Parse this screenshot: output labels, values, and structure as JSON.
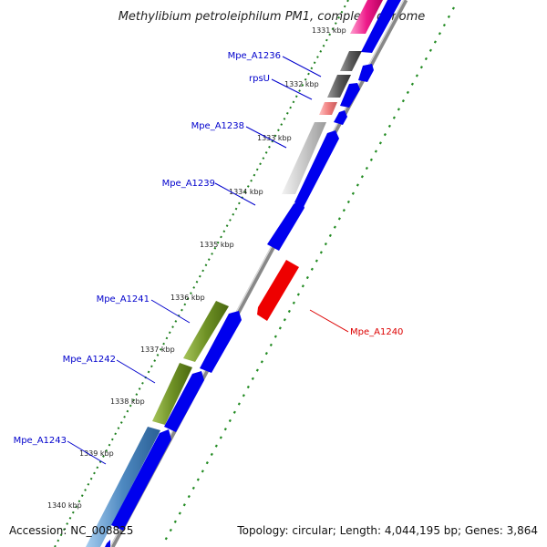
{
  "title": "Methylibium petroleiphilum PM1, complete genome",
  "accession_text": "Accession: NC_008825",
  "summary_text": "Topology: circular; Length: 4,044,195 bp; Genes: 3,864",
  "colors": {
    "cds_forward": "#0000ee",
    "cds_reverse": "#ee0000",
    "label": "#0000cc",
    "label_reverse": "#dd0000",
    "gc_skew": "#228b22",
    "backbone": "#888888"
  },
  "ticks": [
    {
      "label": "1331 kbp"
    },
    {
      "label": "1332 kbp"
    },
    {
      "label": "1333 kbp"
    },
    {
      "label": "1334 kbp"
    },
    {
      "label": "1335 kbp"
    },
    {
      "label": "1336 kbp"
    },
    {
      "label": "1337 kbp"
    },
    {
      "label": "1338 kbp"
    },
    {
      "label": "1339 kbp"
    },
    {
      "label": "1340 kbp"
    }
  ],
  "gene_labels": [
    {
      "name": "Mpe_A1236"
    },
    {
      "name": "rpsU"
    },
    {
      "name": "Mpe_A1238"
    },
    {
      "name": "Mpe_A1239"
    },
    {
      "name": "Mpe_A1241"
    },
    {
      "name": "Mpe_A1242"
    },
    {
      "name": "Mpe_A1243"
    },
    {
      "name": "Mpe_A1240"
    }
  ]
}
